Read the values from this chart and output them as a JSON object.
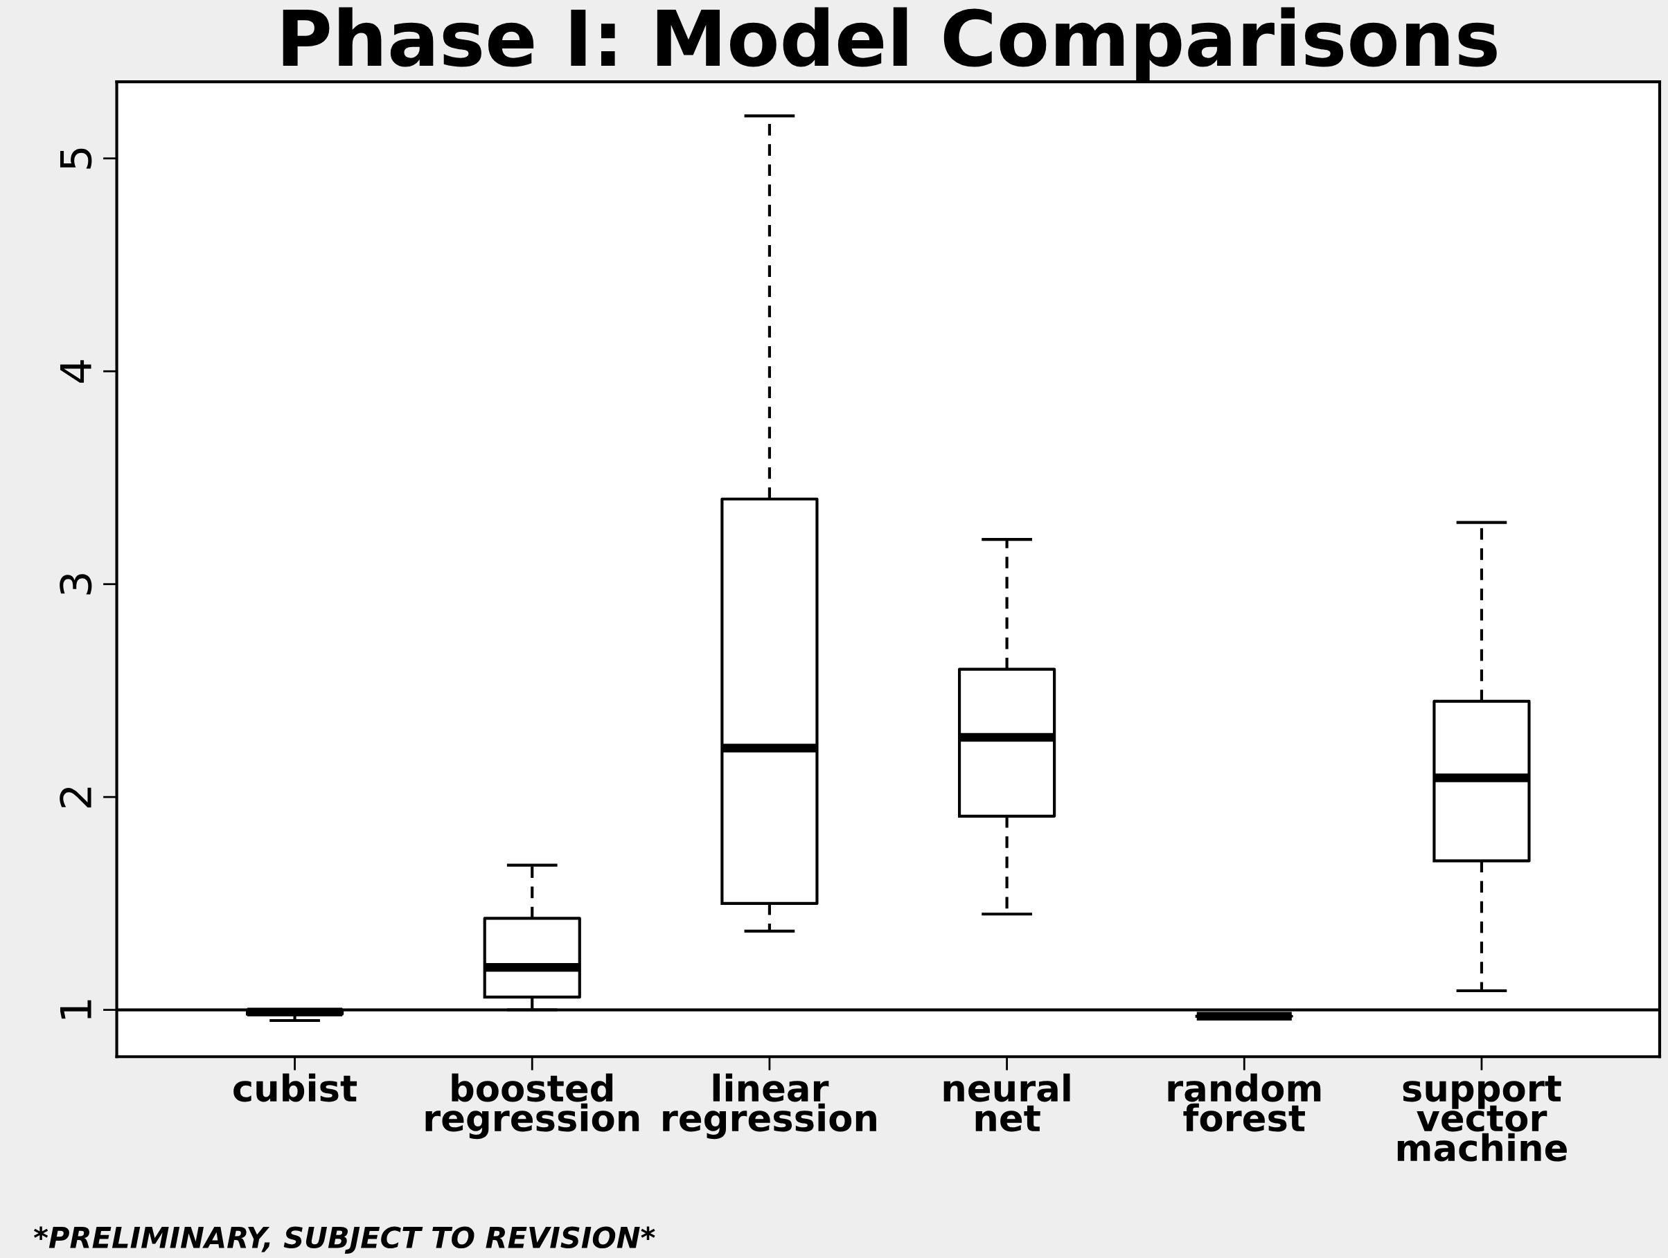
{
  "chart_data": {
    "type": "box",
    "title": "Phase I: Model Comparisons",
    "categories": [
      "cubist",
      "boosted\nregression",
      "linear\nregression",
      "neural\nnet",
      "random\nforest",
      "support\nvector\nmachine"
    ],
    "boxes": [
      {
        "low": 0.95,
        "q1": 0.98,
        "median": 0.99,
        "q3": 1.0,
        "high": 1.0
      },
      {
        "low": 1.0,
        "q1": 1.06,
        "median": 1.2,
        "q3": 1.43,
        "high": 1.68
      },
      {
        "low": 1.37,
        "q1": 1.5,
        "median": 2.23,
        "q3": 3.4,
        "high": 5.2
      },
      {
        "low": 1.45,
        "q1": 1.91,
        "median": 2.28,
        "q3": 2.6,
        "high": 3.21
      },
      {
        "low": 0.97,
        "q1": 0.97,
        "median": 0.97,
        "q3": 0.97,
        "high": 0.97
      },
      {
        "low": 1.09,
        "q1": 1.7,
        "median": 2.09,
        "q3": 2.45,
        "high": 3.29
      }
    ],
    "ylim": [
      0.78,
      5.36
    ],
    "yticks": [
      1,
      2,
      3,
      4,
      5
    ],
    "grid": false,
    "ref_lines": [
      {
        "axis": "y",
        "value": 1,
        "color": "#000000"
      }
    ],
    "annotations": [
      "*PRELIMINARY, SUBJECT TO REVISION*"
    ]
  }
}
